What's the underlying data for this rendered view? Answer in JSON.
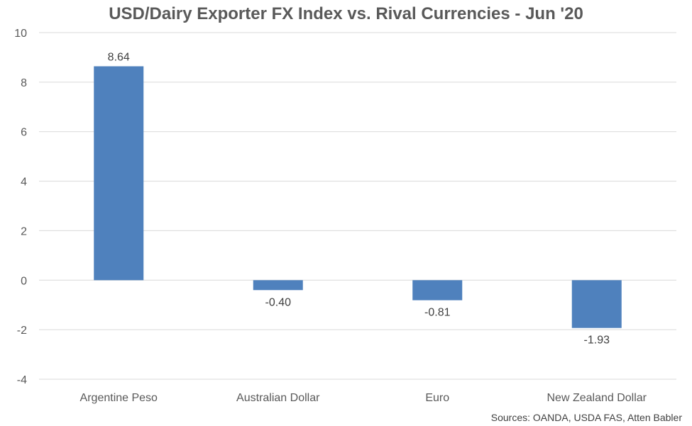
{
  "chart_data": {
    "type": "bar",
    "title": "USD/Dairy Exporter FX Index vs. Rival Currencies - Jun '20",
    "categories": [
      "Argentine Peso",
      "Australian Dollar",
      "Euro",
      "New Zealand Dollar"
    ],
    "values": [
      8.64,
      -0.4,
      -0.81,
      -1.93
    ],
    "data_labels": [
      "8.64",
      "-0.40",
      "-0.81",
      "-1.93"
    ],
    "ylim": [
      -4,
      10
    ],
    "yticks": [
      -4,
      -2,
      0,
      2,
      4,
      6,
      8,
      10
    ],
    "grid": true,
    "bar_color": "#4f81bd",
    "grid_color": "#d9d9d9",
    "xlabel": "",
    "ylabel": ""
  },
  "source": "Sources: OANDA, USDA FAS, Atten Babler"
}
